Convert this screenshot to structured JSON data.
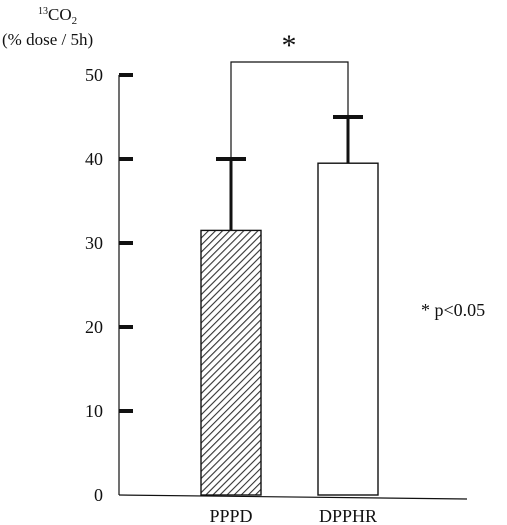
{
  "chart_data": {
    "type": "bar",
    "ylabel_isotope": "13",
    "ylabel_main": "CO",
    "ylabel_sub": "2",
    "ylabel_unit": "(% dose / 5h)",
    "categories": [
      "PPPD",
      "DPPHR"
    ],
    "values": [
      31.5,
      39.5
    ],
    "errors": [
      8.5,
      5.5
    ],
    "bar_styles": [
      "hatched",
      "open"
    ],
    "ylim": [
      0,
      50
    ],
    "yticks": [
      0,
      10,
      20,
      30,
      40,
      50
    ],
    "significance_marker": "*",
    "legend_note": "* p<0.05",
    "grid": false,
    "colors": {
      "ink": "#111111",
      "bar_open": "#ffffff"
    }
  }
}
